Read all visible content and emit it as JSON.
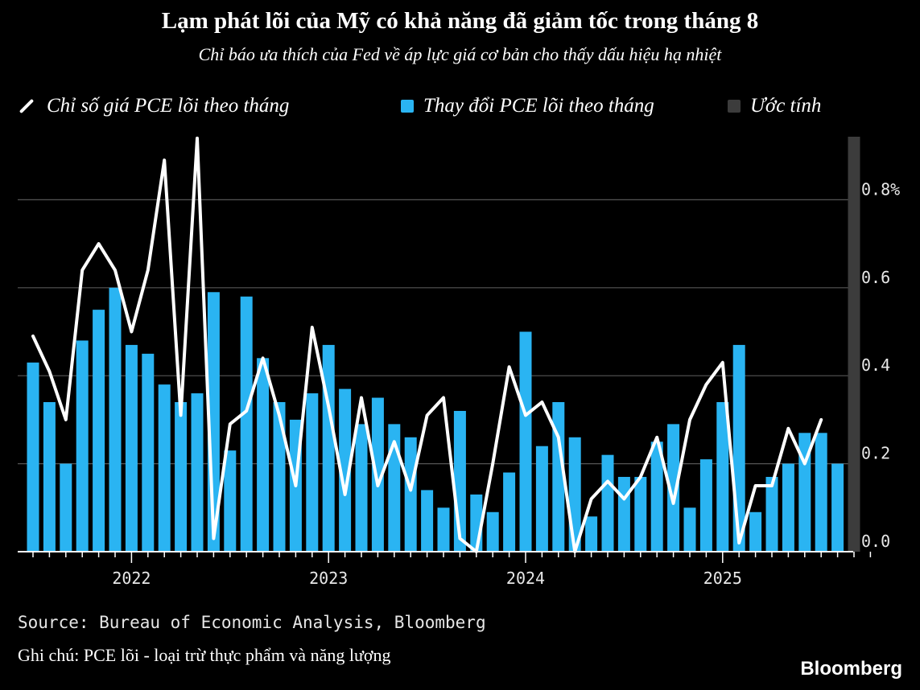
{
  "title": "Lạm phát lõi của Mỹ có khả năng đã giảm tốc trong tháng 8",
  "subtitle": "Chỉ báo ưa thích của Fed về áp lực giá cơ bản cho thấy dấu hiệu hạ nhiệt",
  "legend": {
    "line_label": "Chỉ số giá PCE lõi theo tháng",
    "bar_label": "Thay đổi PCE lõi theo tháng",
    "estimate_label": "Ước tính"
  },
  "colors": {
    "background": "#000000",
    "bar": "#2ab4f2",
    "line": "#ffffff",
    "estimate": "#3c3c3c",
    "grid": "#555555"
  },
  "chart_data": {
    "type": "bar",
    "categories": [
      "2021-08",
      "2021-09",
      "2021-10",
      "2021-11",
      "2021-12",
      "2022-01",
      "2022-02",
      "2022-03",
      "2022-04",
      "2022-05",
      "2022-06",
      "2022-07",
      "2022-08",
      "2022-09",
      "2022-10",
      "2022-11",
      "2022-12",
      "2023-01",
      "2023-02",
      "2023-03",
      "2023-04",
      "2023-05",
      "2023-06",
      "2023-07",
      "2023-08",
      "2023-09",
      "2023-10",
      "2023-11",
      "2023-12",
      "2024-01",
      "2024-02",
      "2024-03",
      "2024-04",
      "2024-05",
      "2024-06",
      "2024-07",
      "2024-08",
      "2024-09",
      "2024-10",
      "2024-11",
      "2024-12",
      "2025-01",
      "2025-02",
      "2025-03",
      "2025-04",
      "2025-05",
      "2025-06",
      "2025-07",
      "2025-08",
      "2025-09",
      "2025-10",
      "2025-11"
    ],
    "series": [
      {
        "name": "Thay đổi PCE lõi theo tháng",
        "type": "bar",
        "values": [
          0.43,
          0.34,
          0.2,
          0.48,
          0.55,
          0.6,
          0.47,
          0.45,
          0.38,
          0.34,
          0.36,
          0.59,
          0.23,
          0.58,
          0.44,
          0.34,
          0.3,
          0.36,
          0.47,
          0.37,
          0.29,
          0.35,
          0.29,
          0.26,
          0.14,
          0.1,
          0.32,
          0.13,
          0.09,
          0.18,
          0.5,
          0.24,
          0.34,
          0.26,
          0.08,
          0.22,
          0.17,
          0.17,
          0.25,
          0.29,
          0.1,
          0.21,
          0.34,
          0.47,
          0.09,
          0.17,
          0.2,
          0.27,
          0.27,
          0.2,
          null,
          null
        ]
      },
      {
        "name": "Chỉ số giá PCE lõi theo tháng",
        "type": "line",
        "values": [
          0.49,
          0.41,
          0.3,
          0.64,
          0.7,
          0.64,
          0.5,
          0.64,
          0.89,
          0.31,
          0.94,
          0.03,
          0.29,
          0.32,
          0.44,
          0.31,
          0.15,
          0.51,
          0.33,
          0.13,
          0.35,
          0.15,
          0.25,
          0.14,
          0.31,
          0.35,
          0.03,
          0.0,
          0.2,
          0.42,
          0.31,
          0.34,
          0.26,
          0.0,
          0.12,
          0.16,
          0.12,
          0.17,
          0.26,
          0.11,
          0.3,
          0.38,
          0.43,
          0.02,
          0.15,
          0.15,
          0.28,
          0.2,
          0.3,
          null,
          null,
          null
        ]
      }
    ],
    "estimate_index": 50,
    "y_ticks": [
      "0.0",
      "0.2",
      "0.4",
      "0.6",
      "0.8%"
    ],
    "y_tick_values": [
      0.0,
      0.2,
      0.4,
      0.6,
      0.8
    ],
    "ylim": [
      0,
      0.95
    ],
    "x_year_labels": [
      {
        "label": "2022",
        "index": 6
      },
      {
        "label": "2023",
        "index": 18
      },
      {
        "label": "2024",
        "index": 30
      },
      {
        "label": "2025",
        "index": 42
      }
    ],
    "grid": true,
    "legend_position": "top"
  },
  "footer": {
    "source": "Source: Bureau of Economic Analysis, Bloomberg",
    "note": "Ghi chú: PCE lõi - loại trừ thực phẩm và năng lượng",
    "brand": "Bloomberg"
  }
}
